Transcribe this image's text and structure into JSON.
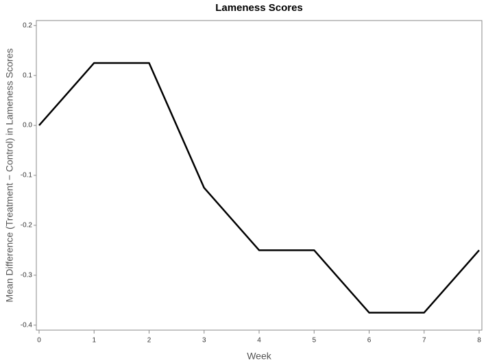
{
  "chart_data": {
    "type": "line",
    "title": "Lameness Scores",
    "x_label": "Week",
    "y_label": "Mean Difference (Treatment − Control) in Lameness Scores",
    "x": [
      0,
      1,
      2,
      3,
      4,
      5,
      6,
      7,
      8
    ],
    "values": [
      0,
      0.125,
      0.125,
      -0.125,
      -0.25,
      -0.25,
      -0.375,
      -0.375,
      -0.25
    ],
    "color": "#000000",
    "xlim": [
      -0.05,
      8.05
    ],
    "xticks": [
      0,
      1,
      2,
      3,
      4,
      5,
      6,
      7,
      8
    ],
    "ylim": [
      -0.41,
      0.21
    ],
    "yticks": [
      -0.4,
      -0.3,
      -0.2,
      -0.1,
      {
        "value": 0,
        "label": "0.0"
      },
      0.1,
      0.2
    ]
  }
}
